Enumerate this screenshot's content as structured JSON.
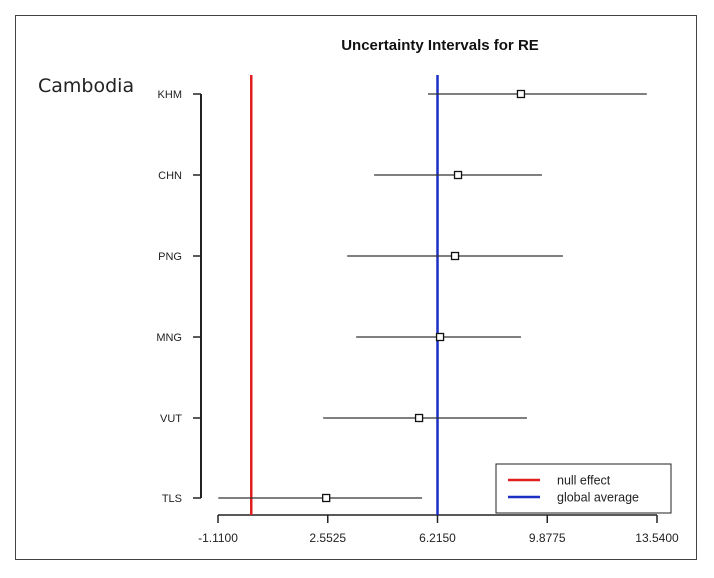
{
  "overlay_label": "Cambodia",
  "chart_data": {
    "type": "interval",
    "title": "Uncertainty Intervals for RE",
    "xlim": [
      -1.11,
      13.54
    ],
    "x_ticks": [
      "-1.1100",
      "2.5525",
      "6.2150",
      "9.8775",
      "13.5400"
    ],
    "x_tick_values": [
      -1.11,
      2.5525,
      6.215,
      9.8775,
      13.54
    ],
    "series": [
      {
        "label": "KHM",
        "low": 5.9,
        "point": 9.0,
        "high": 13.2
      },
      {
        "label": "CHN",
        "low": 4.1,
        "point": 6.9,
        "high": 9.7
      },
      {
        "label": "PNG",
        "low": 3.2,
        "point": 6.8,
        "high": 10.4
      },
      {
        "label": "MNG",
        "low": 3.5,
        "point": 6.3,
        "high": 9.0
      },
      {
        "label": "VUT",
        "low": 2.4,
        "point": 5.6,
        "high": 9.2
      },
      {
        "label": "TLS",
        "low": -1.1,
        "point": 2.5,
        "high": 5.7
      }
    ],
    "reference_lines": [
      {
        "name": "null effect",
        "x": 0.0,
        "color": "#e01e1e"
      },
      {
        "name": "global average",
        "x": 6.215,
        "color": "#1c2fc4"
      }
    ],
    "legend": {
      "position": "bottom-right",
      "entries": [
        "null effect",
        "global average"
      ]
    }
  }
}
